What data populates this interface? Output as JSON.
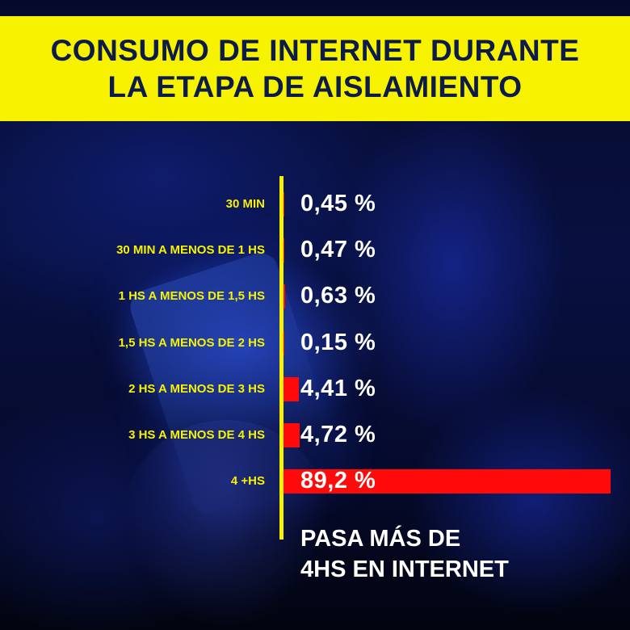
{
  "header": {
    "title_line1": "CONSUMO DE INTERNET DURANTE",
    "title_line2": "LA ETAPA DE AISLAMIENTO"
  },
  "chart_data": {
    "type": "bar",
    "orientation": "horizontal",
    "title": "CONSUMO DE INTERNET DURANTE LA ETAPA DE AISLAMIENTO",
    "categories": [
      "30 MIN",
      "30 MIN A MENOS DE 1 HS",
      "1 HS A MENOS DE 1,5 HS",
      "1,5 HS A MENOS DE 2 HS",
      "2 HS A MENOS DE 3 HS",
      "3 HS A MENOS DE 4 HS",
      "4  +HS"
    ],
    "values": [
      0.45,
      0.47,
      0.63,
      0.15,
      4.41,
      4.72,
      89.2
    ],
    "value_labels": [
      "0,45 %",
      "0,47 %",
      "0,63 %",
      "0,15 %",
      "4,41 %",
      "4,72 %",
      "89,2 %"
    ],
    "xlim": [
      0,
      100
    ],
    "xlabel": "",
    "ylabel": "",
    "grid": false,
    "legend": "none",
    "bar_color": "#ff0a0a",
    "label_color": "#f7f200",
    "value_color": "#ffffff"
  },
  "annotation": {
    "line1": "PASA MÁS DE",
    "line2": "4HS EN INTERNET"
  },
  "colors": {
    "title_band": "#f7f200",
    "title_text": "#0c1b4a",
    "axis": "#f7f200"
  }
}
